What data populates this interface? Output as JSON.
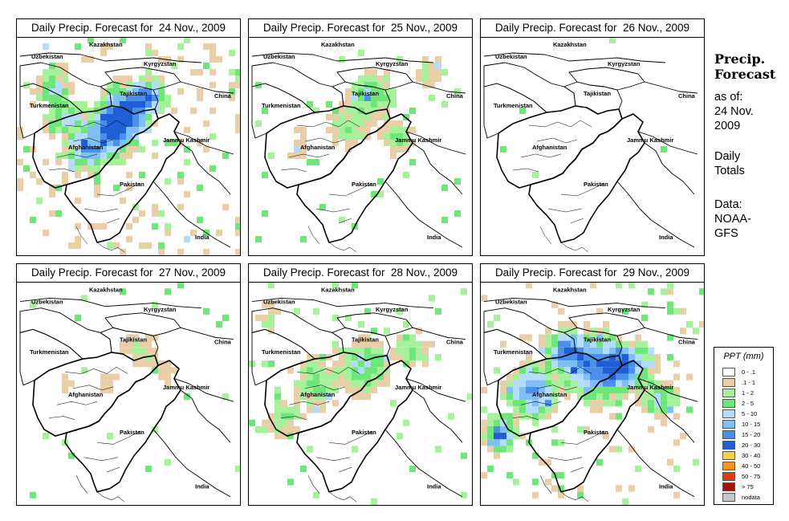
{
  "panels": [
    {
      "title": "Daily Precip. Forecast for  24 Nov., 2009",
      "intensity": 1.0,
      "variant": "a"
    },
    {
      "title": "Daily Precip. Forecast for  25 Nov., 2009",
      "intensity": 0.55,
      "variant": "b"
    },
    {
      "title": "Daily Precip. Forecast for  26 Nov., 2009",
      "intensity": 0.12,
      "variant": "c"
    },
    {
      "title": "Daily Precip. Forecast for  27 Nov., 2009",
      "intensity": 0.35,
      "variant": "d"
    },
    {
      "title": "Daily Precip. Forecast for  28 Nov., 2009",
      "intensity": 0.6,
      "variant": "e"
    },
    {
      "title": "Daily Precip. Forecast for  29 Nov., 2009",
      "intensity": 0.9,
      "variant": "f"
    }
  ],
  "map_labels": {
    "kazakhstan": "Kazakhstan",
    "uzbekistan": "Uzbekistan",
    "kyrgyzstan": "Kyrgyzstan",
    "tajikistan": "Tajikistan",
    "china": "China",
    "turkmenistan": "Turkmenistan",
    "jammu_kashmir": "Jammu Kashmir",
    "afghanistan": "Afghanistan",
    "pakistan": "Pakistan",
    "india": "India"
  },
  "sidebar": {
    "title_line1": "Precip.",
    "title_line2": "Forecast",
    "asof_line1": "as of:",
    "asof_line2": "24 Nov.",
    "asof_line3": "2009",
    "totals_line1": "Daily",
    "totals_line2": "Totals",
    "data_line1": "Data:",
    "data_line2": "NOAA-",
    "data_line3": "GFS"
  },
  "legend": {
    "title": "PPT (mm)",
    "items": [
      {
        "label": "0 - .1",
        "color": "#ffffff"
      },
      {
        "label": ".1 - 1",
        "color": "#e8cfa8"
      },
      {
        "label": "1 - 2",
        "color": "#a6f29a"
      },
      {
        "label": "2 - 5",
        "color": "#6ee67a"
      },
      {
        "label": "5 - 10",
        "color": "#b4dcff"
      },
      {
        "label": "10 - 15",
        "color": "#7ec0f6"
      },
      {
        "label": "15 - 20",
        "color": "#4a90ea"
      },
      {
        "label": "20 - 30",
        "color": "#1f5fd6"
      },
      {
        "label": "30 - 40",
        "color": "#f6d146"
      },
      {
        "label": "40 - 50",
        "color": "#f5951e"
      },
      {
        "label": "50 - 75",
        "color": "#e23c16"
      },
      {
        "label": "> 75",
        "color": "#a1150e"
      },
      {
        "label": "nodata",
        "color": "#c8c8c8"
      }
    ]
  }
}
